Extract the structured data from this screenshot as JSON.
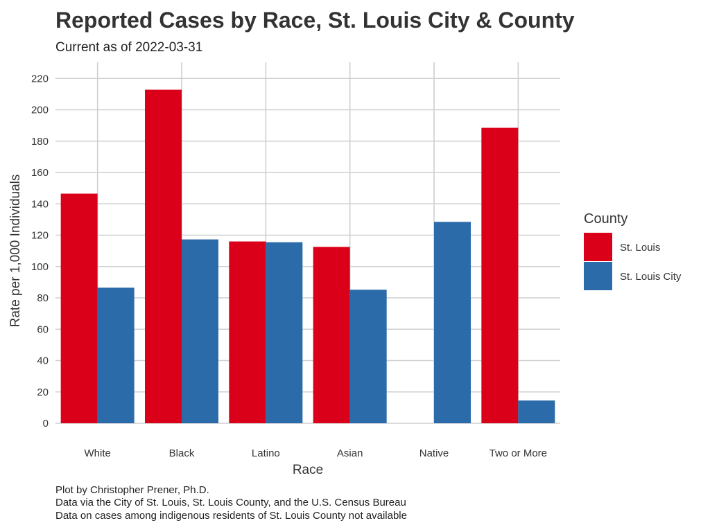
{
  "chart_data": {
    "type": "bar",
    "title": "Reported Cases by Race, St. Louis City & County",
    "subtitle": "Current as of 2022-03-31",
    "xlabel": "Race",
    "ylabel": "Rate per 1,000 Individuals",
    "categories": [
      "White",
      "Black",
      "Latino",
      "Asian",
      "Native",
      "Two or More"
    ],
    "series": [
      {
        "name": "St. Louis",
        "color": "#DA001A",
        "values": [
          146.5,
          212.8,
          116.0,
          112.5,
          null,
          188.5
        ]
      },
      {
        "name": "St. Louis City",
        "color": "#2C6BAA",
        "values": [
          86.5,
          117.3,
          115.5,
          85.2,
          128.5,
          14.5
        ]
      }
    ],
    "ylim": [
      0,
      230
    ],
    "yticks": [
      0,
      20,
      40,
      60,
      80,
      100,
      120,
      140,
      160,
      180,
      200,
      220
    ],
    "legend": {
      "title": "County",
      "position": "right"
    },
    "grid": true,
    "caption": [
      "Plot by Christopher Prener, Ph.D.",
      "Data via the City of St. Louis, St. Louis County, and the U.S. Census Bureau",
      "Data on cases among indigenous residents of St. Louis County not available"
    ]
  }
}
